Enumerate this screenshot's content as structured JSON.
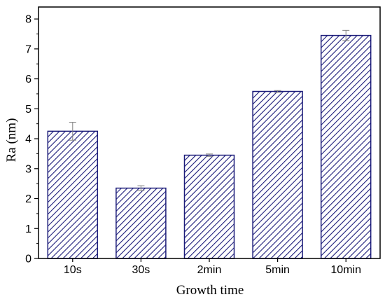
{
  "chart_data": {
    "type": "bar",
    "categories": [
      "10s",
      "30s",
      "2min",
      "5min",
      "10min"
    ],
    "values": [
      4.25,
      2.35,
      3.45,
      5.58,
      7.45
    ],
    "errors": [
      0.3,
      0.08,
      0.04,
      0.03,
      0.17
    ],
    "title": "",
    "xlabel": "Growth time",
    "ylabel": "Ra (nm)",
    "ylim": [
      0,
      8.4
    ],
    "yticks": [
      0,
      1,
      2,
      3,
      4,
      5,
      6,
      7,
      8
    ],
    "grid": false,
    "legend": "none",
    "bar_fill": "hatched",
    "colors": {
      "bar_stroke": "#1c1c7a",
      "hatch": "#1c1c7a",
      "bar_background": "#ffffff",
      "error_bar": "#808080",
      "axis": "#000000"
    }
  }
}
